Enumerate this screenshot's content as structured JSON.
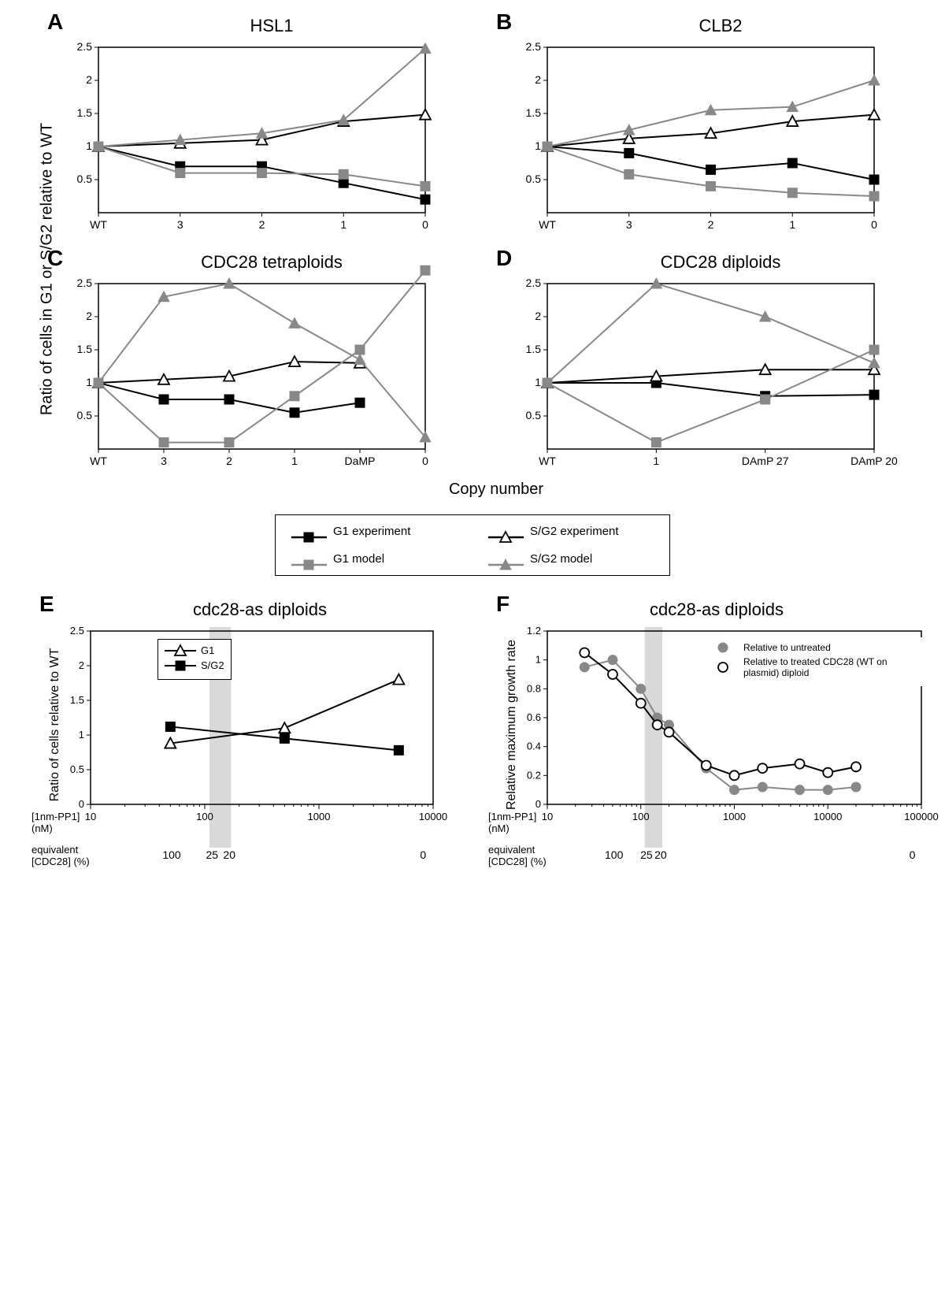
{
  "colors": {
    "black": "#000000",
    "gray": "#888888",
    "shade": "#d9d9d9"
  },
  "fontsize": {
    "panel_letter": 28,
    "panel_title": 22,
    "axis_label": 20,
    "tick": 14,
    "legend": 15
  },
  "shared_y_label": "Ratio of cells in G1 or S/G2 relative to WT",
  "x_label_top": "Copy number",
  "panelA": {
    "letter": "A",
    "title": "HSL1",
    "x_categories": [
      "WT",
      "3",
      "2",
      "1",
      "0"
    ],
    "ylim": [
      0,
      2.5
    ],
    "ytick_step": 0.5,
    "series": {
      "g1_exp": {
        "color": "#000000",
        "marker": "filled-square",
        "y": [
          1.0,
          0.7,
          0.7,
          0.45,
          0.2
        ]
      },
      "sg2_exp": {
        "color": "#000000",
        "marker": "open-triangle",
        "y": [
          1.0,
          1.05,
          1.1,
          1.38,
          1.48
        ]
      },
      "g1_model": {
        "color": "#888888",
        "marker": "filled-square",
        "y": [
          1.0,
          0.6,
          0.6,
          0.58,
          0.4
        ]
      },
      "sg2_model": {
        "color": "#888888",
        "marker": "filled-triangle",
        "y": [
          1.0,
          1.1,
          1.2,
          1.4,
          2.48
        ]
      }
    }
  },
  "panelB": {
    "letter": "B",
    "title": "CLB2",
    "x_categories": [
      "WT",
      "3",
      "2",
      "1",
      "0"
    ],
    "ylim": [
      0,
      2.5
    ],
    "ytick_step": 0.5,
    "series": {
      "g1_exp": {
        "color": "#000000",
        "marker": "filled-square",
        "y": [
          1.0,
          0.9,
          0.65,
          0.75,
          0.5
        ]
      },
      "sg2_exp": {
        "color": "#000000",
        "marker": "open-triangle",
        "y": [
          1.0,
          1.12,
          1.2,
          1.38,
          1.48
        ]
      },
      "g1_model": {
        "color": "#888888",
        "marker": "filled-square",
        "y": [
          1.0,
          0.58,
          0.4,
          0.3,
          0.25
        ]
      },
      "sg2_model": {
        "color": "#888888",
        "marker": "filled-triangle",
        "y": [
          1.0,
          1.25,
          1.55,
          1.6,
          2.0
        ]
      }
    }
  },
  "panelC": {
    "letter": "C",
    "title": "CDC28 tetraploids",
    "x_categories": [
      "WT",
      "3",
      "2",
      "1",
      "DaMP",
      "0"
    ],
    "ylim": [
      0,
      2.5
    ],
    "ytick_step": 0.5,
    "series": {
      "g1_exp": {
        "color": "#000000",
        "marker": "filled-square",
        "y": [
          1.0,
          0.75,
          0.75,
          0.55,
          0.7,
          null
        ]
      },
      "sg2_exp": {
        "color": "#000000",
        "marker": "open-triangle",
        "y": [
          1.0,
          1.05,
          1.1,
          1.32,
          1.3,
          null
        ]
      },
      "g1_model": {
        "color": "#888888",
        "marker": "filled-square",
        "y": [
          1.0,
          0.1,
          0.1,
          0.8,
          1.5,
          2.7
        ]
      },
      "sg2_model": {
        "color": "#888888",
        "marker": "filled-triangle",
        "y": [
          1.0,
          2.3,
          2.5,
          1.9,
          1.35,
          0.18
        ]
      }
    }
  },
  "panelD": {
    "letter": "D",
    "title": "CDC28 diploids",
    "x_categories": [
      "WT",
      "1",
      "DAmP 27",
      "DAmP 20"
    ],
    "ylim": [
      0,
      2.5
    ],
    "ytick_step": 0.5,
    "series": {
      "g1_exp": {
        "color": "#000000",
        "marker": "filled-square",
        "y": [
          1.0,
          1.0,
          0.8,
          0.82
        ]
      },
      "sg2_exp": {
        "color": "#000000",
        "marker": "open-triangle",
        "y": [
          1.0,
          1.1,
          1.2,
          1.2
        ]
      },
      "g1_model": {
        "color": "#888888",
        "marker": "filled-square",
        "y": [
          1.0,
          0.1,
          0.75,
          1.5
        ]
      },
      "sg2_model": {
        "color": "#888888",
        "marker": "filled-triangle",
        "y": [
          1.0,
          2.5,
          2.0,
          1.3
        ]
      }
    }
  },
  "legend_main": {
    "items": [
      {
        "key": "g1_exp",
        "label": "G1 experiment",
        "color": "#000000",
        "marker": "filled-square"
      },
      {
        "key": "sg2_exp",
        "label": "S/G2 experiment",
        "color": "#000000",
        "marker": "open-triangle"
      },
      {
        "key": "g1_model",
        "label": "G1 model",
        "color": "#888888",
        "marker": "filled-square"
      },
      {
        "key": "sg2_model",
        "label": "S/G2 model",
        "color": "#888888",
        "marker": "filled-triangle"
      }
    ]
  },
  "panelE": {
    "letter": "E",
    "title": "cdc28-as diploids",
    "ylabel": "Ratio of cells relative to WT",
    "ylim": [
      0,
      2.5
    ],
    "ytick_step": 0.5,
    "xscale": "log",
    "xlim": [
      10,
      10000
    ],
    "xticks": [
      10,
      100,
      1000,
      10000
    ],
    "shade_x": [
      110,
      170
    ],
    "legend": [
      {
        "label": "G1",
        "marker": "open-triangle",
        "color": "#000000"
      },
      {
        "label": "S/G2",
        "marker": "filled-square",
        "color": "#000000"
      }
    ],
    "series": {
      "g1": {
        "color": "#000000",
        "marker": "open-triangle",
        "x": [
          50,
          500,
          5000
        ],
        "y": [
          0.88,
          1.1,
          1.8
        ]
      },
      "sg2": {
        "color": "#000000",
        "marker": "filled-square",
        "x": [
          50,
          500,
          5000
        ],
        "y": [
          1.12,
          0.95,
          0.78
        ]
      }
    },
    "sub_x1_label": "[1nm-PP1]\n(nM)",
    "sub_x2_label": "equivalent\n[CDC28] (%)",
    "sub_x2_ticks": [
      {
        "pos": 50,
        "label": "100"
      },
      {
        "pos": 120,
        "label": "25"
      },
      {
        "pos": 170,
        "label": "20"
      },
      {
        "pos": 9000,
        "label": "0"
      }
    ]
  },
  "panelF": {
    "letter": "F",
    "title": "cdc28-as diploids",
    "ylabel": "Relative maximum growth rate",
    "ylim": [
      0,
      1.2
    ],
    "ytick_step": 0.2,
    "xscale": "log",
    "xlim": [
      10,
      100000
    ],
    "xticks": [
      10,
      100,
      1000,
      10000,
      100000
    ],
    "shade_x": [
      110,
      170
    ],
    "legend": [
      {
        "label": "Relative to untreated",
        "marker": "filled-circle",
        "color": "#888888"
      },
      {
        "label": "Relative to treated CDC28 (WT on plasmid) diploid",
        "marker": "open-circle",
        "color": "#000000"
      }
    ],
    "series": {
      "untreated": {
        "color": "#888888",
        "marker": "filled-circle",
        "x": [
          25,
          50,
          100,
          150,
          200,
          500,
          1000,
          2000,
          5000,
          10000,
          20000
        ],
        "y": [
          0.95,
          1.0,
          0.8,
          0.6,
          0.55,
          0.25,
          0.1,
          0.12,
          0.1,
          0.1,
          0.12
        ]
      },
      "treated": {
        "color": "#000000",
        "marker": "open-circle",
        "x": [
          25,
          50,
          100,
          150,
          200,
          500,
          1000,
          2000,
          5000,
          10000,
          20000
        ],
        "y": [
          1.05,
          0.9,
          0.7,
          0.55,
          0.5,
          0.27,
          0.2,
          0.25,
          0.28,
          0.22,
          0.26
        ]
      }
    },
    "sub_x1_label": "[1nm-PP1]\n(nM)",
    "sub_x2_label": "equivalent\n[CDC28] (%)",
    "sub_x2_ticks": [
      {
        "pos": 50,
        "label": "100"
      },
      {
        "pos": 120,
        "label": "25"
      },
      {
        "pos": 170,
        "label": "20"
      },
      {
        "pos": 90000,
        "label": "0"
      }
    ]
  }
}
